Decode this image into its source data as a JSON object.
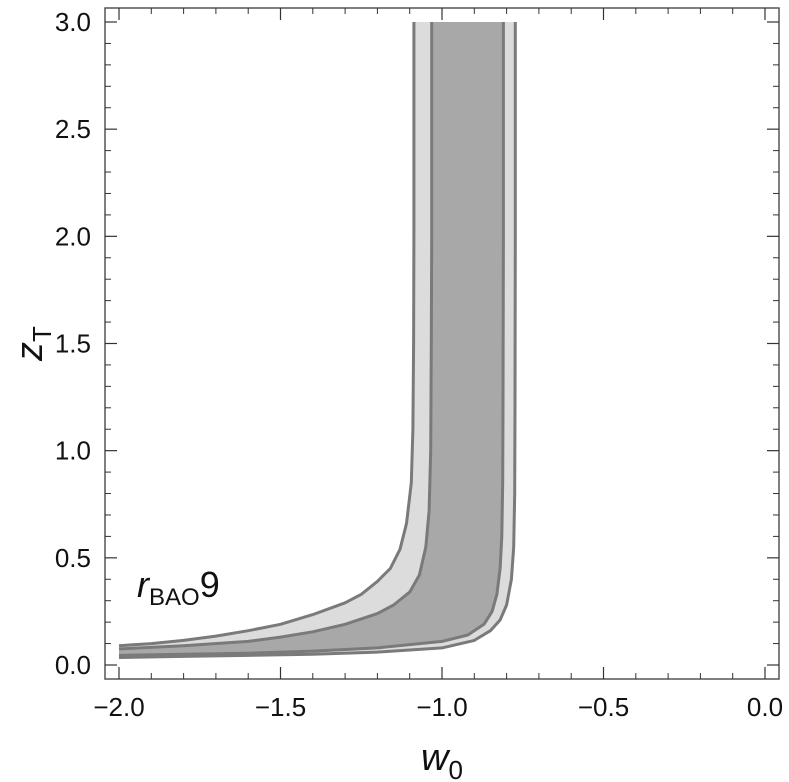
{
  "chart_data": {
    "type": "area",
    "title": "",
    "xlabel": "w",
    "xlabel_sub": "0",
    "ylabel": "z",
    "ylabel_sub": "T",
    "xlim": [
      -2.0,
      0.0
    ],
    "ylim": [
      0.0,
      3.0
    ],
    "x_ticks": [
      "−2.0",
      "−1.5",
      "−1.0",
      "−0.5",
      "0.0"
    ],
    "x_tick_values": [
      -2.0,
      -1.5,
      -1.0,
      -0.5,
      0.0
    ],
    "y_ticks": [
      "0.0",
      "0.5",
      "1.0",
      "1.5",
      "2.0",
      "2.5",
      "3.0"
    ],
    "y_tick_values": [
      0.0,
      0.5,
      1.0,
      1.5,
      2.0,
      2.5,
      3.0
    ],
    "grid": false,
    "annotation": {
      "main": "r",
      "sub": "BAO",
      "suffix": "9"
    },
    "colors": {
      "outer_band": "#dcdcdc",
      "inner_band": "#a8a8a8",
      "edge": "#7a7a7a"
    },
    "series": [
      {
        "level": "outer",
        "left_boundary": [
          [
            -2.0,
            0.09
          ],
          [
            -1.9,
            0.1
          ],
          [
            -1.8,
            0.115
          ],
          [
            -1.7,
            0.135
          ],
          [
            -1.6,
            0.16
          ],
          [
            -1.5,
            0.19
          ],
          [
            -1.4,
            0.235
          ],
          [
            -1.3,
            0.29
          ],
          [
            -1.25,
            0.33
          ],
          [
            -1.2,
            0.39
          ],
          [
            -1.16,
            0.45
          ],
          [
            -1.13,
            0.54
          ],
          [
            -1.11,
            0.66
          ],
          [
            -1.095,
            0.85
          ],
          [
            -1.09,
            1.1
          ],
          [
            -1.088,
            1.5
          ],
          [
            -1.087,
            2.0
          ],
          [
            -1.087,
            3.0
          ]
        ],
        "right_boundary": [
          [
            -2.0,
            0.035
          ],
          [
            -1.8,
            0.04
          ],
          [
            -1.6,
            0.045
          ],
          [
            -1.4,
            0.05
          ],
          [
            -1.2,
            0.06
          ],
          [
            -1.0,
            0.08
          ],
          [
            -0.9,
            0.115
          ],
          [
            -0.85,
            0.16
          ],
          [
            -0.82,
            0.21
          ],
          [
            -0.8,
            0.28
          ],
          [
            -0.785,
            0.4
          ],
          [
            -0.778,
            0.55
          ],
          [
            -0.775,
            0.8
          ],
          [
            -0.774,
            1.2
          ],
          [
            -0.773,
            2.0
          ],
          [
            -0.773,
            3.0
          ]
        ]
      },
      {
        "level": "inner",
        "left_boundary": [
          [
            -2.0,
            0.075
          ],
          [
            -1.8,
            0.09
          ],
          [
            -1.6,
            0.11
          ],
          [
            -1.5,
            0.13
          ],
          [
            -1.4,
            0.155
          ],
          [
            -1.3,
            0.19
          ],
          [
            -1.2,
            0.24
          ],
          [
            -1.15,
            0.28
          ],
          [
            -1.1,
            0.34
          ],
          [
            -1.07,
            0.42
          ],
          [
            -1.05,
            0.55
          ],
          [
            -1.04,
            0.72
          ],
          [
            -1.035,
            1.0
          ],
          [
            -1.033,
            1.5
          ],
          [
            -1.032,
            2.0
          ],
          [
            -1.032,
            3.0
          ]
        ],
        "right_boundary": [
          [
            -2.0,
            0.045
          ],
          [
            -1.8,
            0.05
          ],
          [
            -1.6,
            0.055
          ],
          [
            -1.4,
            0.065
          ],
          [
            -1.2,
            0.08
          ],
          [
            -1.0,
            0.11
          ],
          [
            -0.92,
            0.14
          ],
          [
            -0.87,
            0.19
          ],
          [
            -0.845,
            0.25
          ],
          [
            -0.83,
            0.33
          ],
          [
            -0.82,
            0.45
          ],
          [
            -0.815,
            0.6
          ],
          [
            -0.812,
            0.85
          ],
          [
            -0.811,
            1.2
          ],
          [
            -0.81,
            2.0
          ],
          [
            -0.81,
            3.0
          ]
        ]
      }
    ]
  }
}
